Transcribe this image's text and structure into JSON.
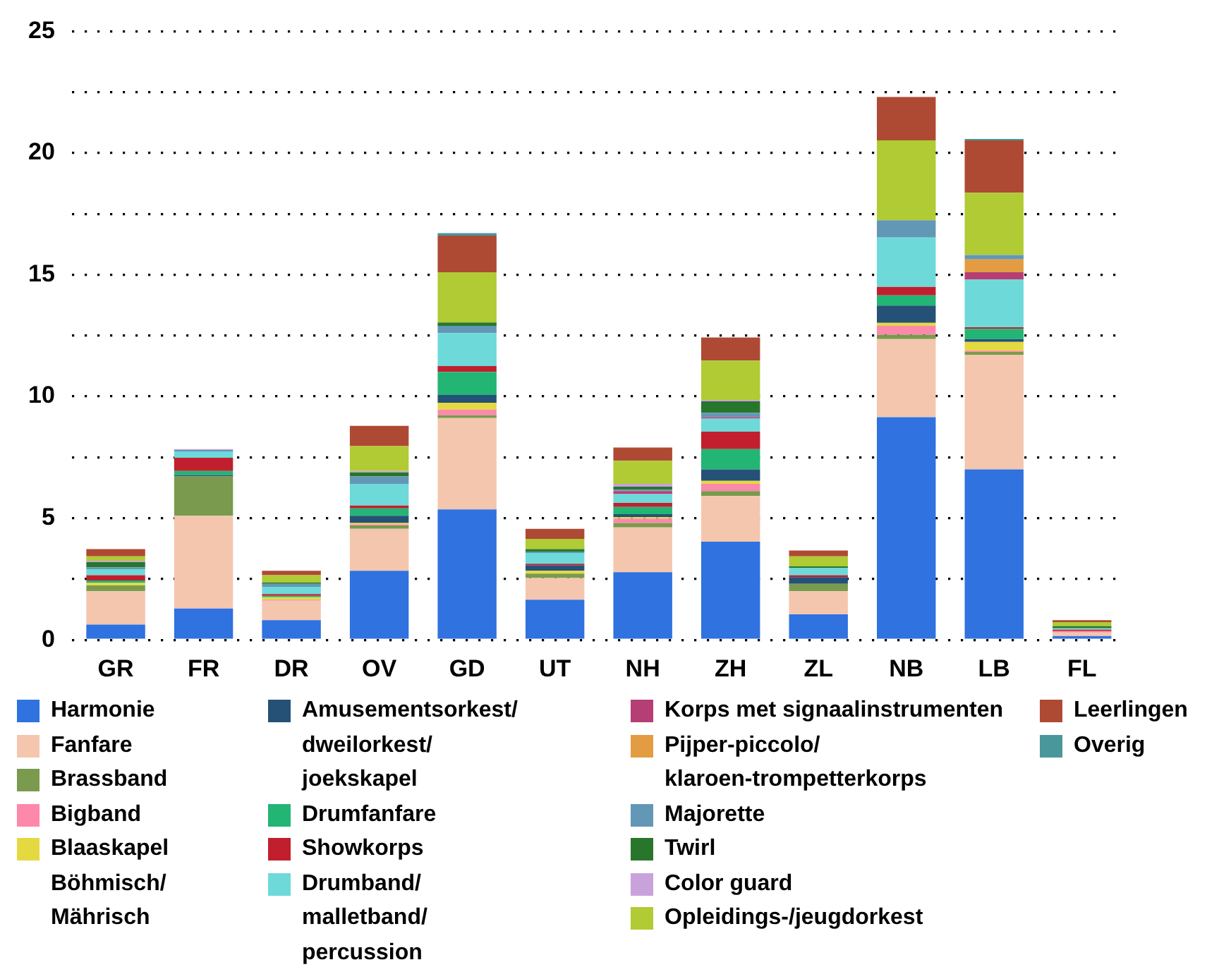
{
  "chart_data": {
    "type": "bar",
    "stacked": true,
    "categories": [
      "GR",
      "FR",
      "DR",
      "OV",
      "GD",
      "UT",
      "NH",
      "ZH",
      "ZL",
      "NB",
      "LB",
      "FL"
    ],
    "ylim": [
      0,
      25
    ],
    "yticks": [
      0,
      {
        "value": 2.5,
        "label": null
      },
      5,
      {
        "value": 7.5,
        "label": null
      },
      10,
      {
        "value": 12.5,
        "label": null
      },
      15,
      {
        "value": 17.5,
        "label": null
      },
      20,
      {
        "value": 22.5,
        "label": null
      },
      25
    ],
    "grid": "y",
    "legend": "bottom",
    "series": [
      {
        "name": "Harmonie",
        "color": "#2f72e0",
        "values": [
          0.63,
          1.29,
          0.81,
          2.84,
          5.36,
          1.65,
          2.78,
          4.03,
          1.05,
          9.15,
          7.0,
          0.16
        ]
      },
      {
        "name": "Fanfare",
        "color": "#f4c6ae",
        "values": [
          1.37,
          3.81,
          0.8,
          1.72,
          3.75,
          0.89,
          1.84,
          1.88,
          0.95,
          3.21,
          4.71,
          0.14
        ]
      },
      {
        "name": "Brassband",
        "color": "#7a9a4e",
        "values": [
          0.24,
          1.61,
          0,
          0.14,
          0.12,
          0.18,
          0.18,
          0.2,
          0.3,
          0.18,
          0.12,
          0
        ]
      },
      {
        "name": "Bigband",
        "color": "#fd88aa",
        "values": [
          0,
          0,
          0.04,
          0.04,
          0.23,
          0,
          0.18,
          0.3,
          0,
          0.36,
          0.05,
          0.06
        ]
      },
      {
        "name": "Blaaskapel Böhmisch/Mährisch",
        "color": "#e5d941",
        "values": [
          0.1,
          0,
          0.1,
          0.06,
          0.28,
          0.12,
          0.06,
          0.12,
          0,
          0.12,
          0.36,
          0
        ]
      },
      {
        "name": "Amusementsorkest/dweilorkest/joekskapel",
        "color": "#255176",
        "values": [
          0,
          0.06,
          0,
          0.3,
          0.32,
          0.22,
          0.12,
          0.47,
          0.28,
          0.71,
          0.12,
          0
        ]
      },
      {
        "name": "Drumfanfare",
        "color": "#22b574",
        "values": [
          0.1,
          0.17,
          0.06,
          0.3,
          0.95,
          0,
          0.3,
          0.84,
          0,
          0.42,
          0.42,
          0
        ]
      },
      {
        "name": "Showkorps",
        "color": "#c11f2e",
        "values": [
          0.22,
          0.54,
          0.07,
          0.12,
          0.24,
          0.07,
          0.17,
          0.71,
          0.08,
          0.35,
          0.06,
          0.06
        ]
      },
      {
        "name": "Drumband/malletband/percussion",
        "color": "#6ddad9",
        "values": [
          0.24,
          0.26,
          0.3,
          0.89,
          1.35,
          0.44,
          0.36,
          0.54,
          0.3,
          2.03,
          1.96,
          0.06
        ]
      },
      {
        "name": "Korps met signaalinstrumenten",
        "color": "#b53f74",
        "values": [
          0,
          0,
          0,
          0,
          0,
          0,
          0.12,
          0.06,
          0,
          0,
          0.3,
          0
        ]
      },
      {
        "name": "Pijper-piccolo/klaroen-trompetterkorps",
        "color": "#e39c41",
        "values": [
          0,
          0,
          0,
          0,
          0,
          0,
          0,
          0,
          0,
          0,
          0.53,
          0
        ]
      },
      {
        "name": "Majorette",
        "color": "#6397b6",
        "values": [
          0.08,
          0.06,
          0.12,
          0.3,
          0.3,
          0.06,
          0.06,
          0.18,
          0,
          0.71,
          0.18,
          0
        ]
      },
      {
        "name": "Twirl",
        "color": "#28762b",
        "values": [
          0.21,
          0,
          0.06,
          0.17,
          0.14,
          0.1,
          0.12,
          0.47,
          0.06,
          0,
          0,
          0.08
        ]
      },
      {
        "name": "Color guard",
        "color": "#c9a2dc",
        "values": [
          0.06,
          0.04,
          0,
          0.06,
          0,
          0,
          0.12,
          0.06,
          0,
          0,
          0,
          0
        ]
      },
      {
        "name": "Opleidings-/jeugdorkest",
        "color": "#b0cb33",
        "values": [
          0.18,
          0,
          0.3,
          1.02,
          2.06,
          0.42,
          0.95,
          1.61,
          0.41,
          3.28,
          2.56,
          0.17
        ]
      },
      {
        "name": "Leerlingen",
        "color": "#ae4a34",
        "values": [
          0.3,
          0,
          0.18,
          0.83,
          1.51,
          0.41,
          0.54,
          0.95,
          0.24,
          1.78,
          2.15,
          0.08
        ]
      },
      {
        "name": "Overig",
        "color": "#4a979b",
        "values": [
          0,
          0,
          0,
          0,
          0.1,
          0,
          0,
          0,
          0,
          0,
          0.06,
          0
        ]
      }
    ]
  }
}
